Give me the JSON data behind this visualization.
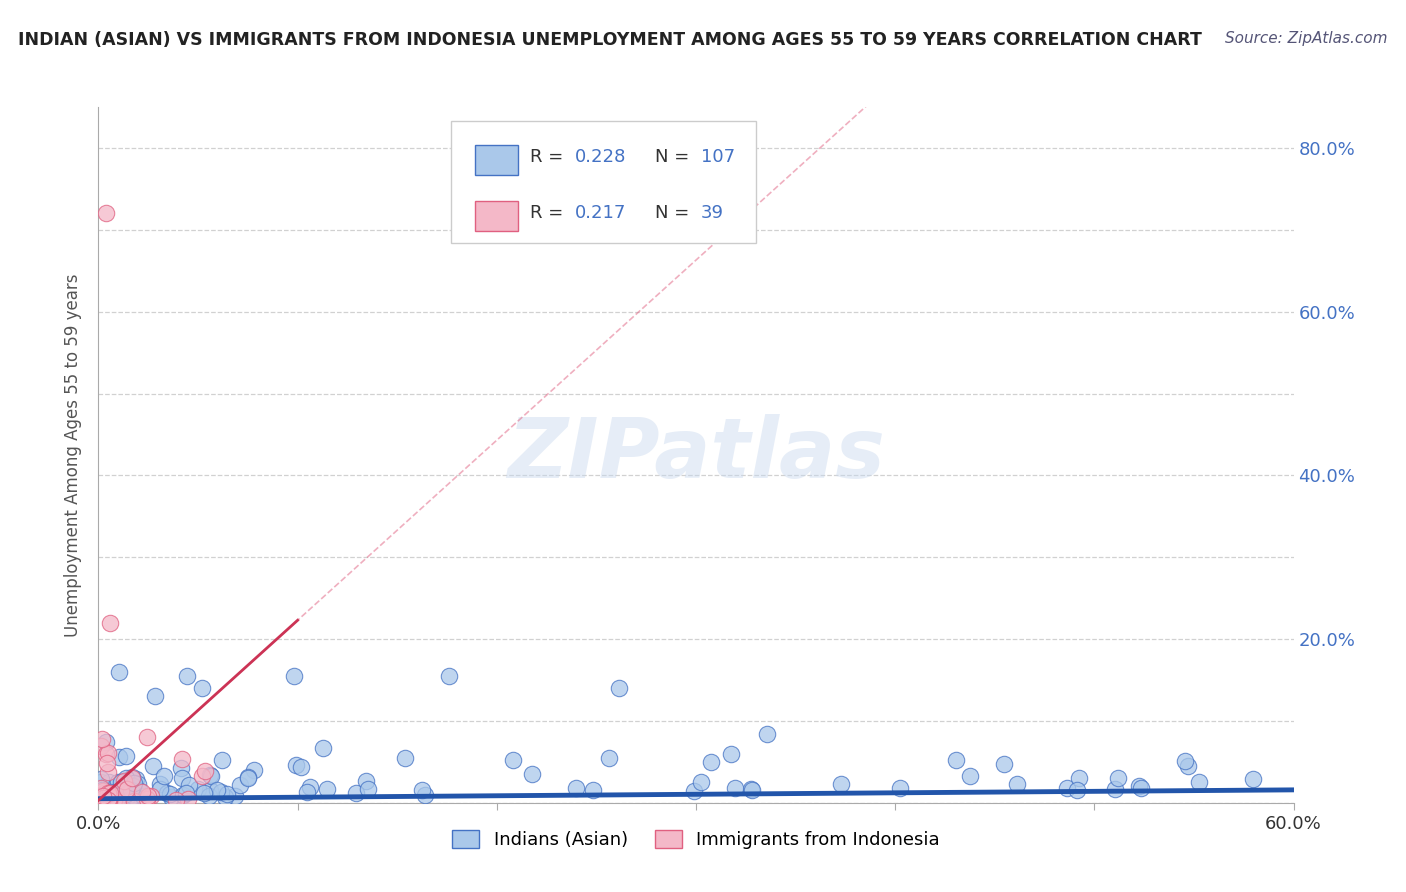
{
  "title": "INDIAN (ASIAN) VS IMMIGRANTS FROM INDONESIA UNEMPLOYMENT AMONG AGES 55 TO 59 YEARS CORRELATION CHART",
  "source": "Source: ZipAtlas.com",
  "ylabel": "Unemployment Among Ages 55 to 59 years",
  "xlim": [
    0.0,
    0.6
  ],
  "ylim": [
    0.0,
    0.85
  ],
  "xticks": [
    0.0,
    0.1,
    0.2,
    0.3,
    0.4,
    0.5,
    0.6
  ],
  "xticklabels": [
    "0.0%",
    "",
    "",
    "",
    "",
    "",
    "60.0%"
  ],
  "yticks": [
    0.0,
    0.2,
    0.4,
    0.6,
    0.8
  ],
  "yticklabels_right": [
    "",
    "20.0%",
    "40.0%",
    "60.0%",
    "80.0%"
  ],
  "indian_R": 0.228,
  "indian_N": 107,
  "indonesia_R": 0.217,
  "indonesia_N": 39,
  "indian_color": "#aac8ea",
  "indian_edge_color": "#4472c4",
  "indian_line_color": "#2255aa",
  "indonesia_color": "#f4b8c8",
  "indonesia_edge_color": "#e06080",
  "indonesia_line_color": "#cc3355",
  "legend_label_1": "Indians (Asian)",
  "legend_label_2": "Immigrants from Indonesia",
  "watermark_text": "ZIPatlas",
  "background_color": "#ffffff",
  "grid_color": "#cccccc",
  "title_color": "#222222",
  "source_color": "#555577",
  "axis_label_color": "#555555",
  "right_tick_color": "#4472c4",
  "legend_text_color": "#4472c4",
  "legend_R_label_color": "#222222"
}
